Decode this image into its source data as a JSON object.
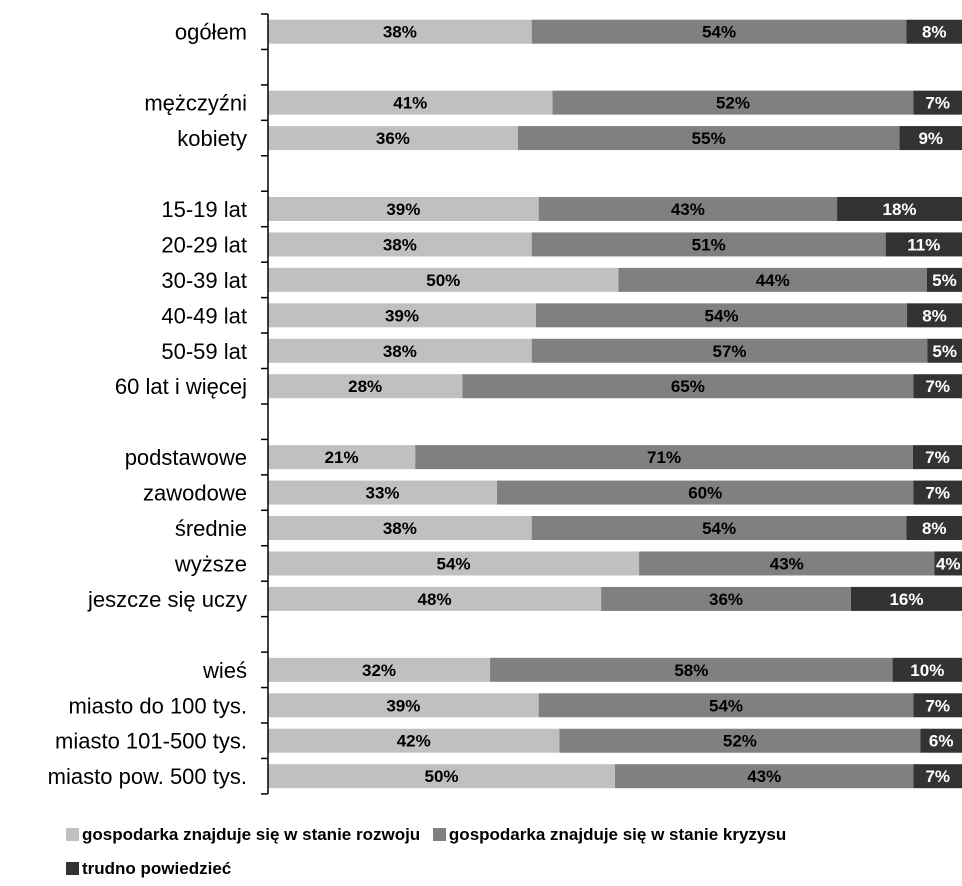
{
  "chart_data": {
    "type": "bar",
    "orientation": "horizontal",
    "stacked": "percent",
    "categories": [
      "ogółem",
      "",
      "mężczyźni",
      "kobiety",
      "",
      "15-19 lat",
      "20-29 lat",
      "30-39 lat",
      "40-49 lat",
      "50-59 lat",
      "60 lat i więcej",
      "",
      "podstawowe",
      "zawodowe",
      "średnie",
      "wyższe",
      "jeszcze się uczy",
      "",
      "wieś",
      "miasto do 100 tys.",
      "miasto 101-500 tys.",
      "miasto pow. 500 tys."
    ],
    "series": [
      {
        "name": "gospodarka znajduje się w stanie rozwoju",
        "color": "#c0c0c0",
        "values": [
          38,
          null,
          41,
          36,
          null,
          39,
          38,
          50,
          39,
          38,
          28,
          null,
          21,
          33,
          38,
          54,
          48,
          null,
          32,
          39,
          42,
          50
        ]
      },
      {
        "name": "gospodarka znajduje się w stanie kryzysu",
        "color": "#808080",
        "values": [
          54,
          null,
          52,
          55,
          null,
          43,
          51,
          44,
          54,
          57,
          65,
          null,
          71,
          60,
          54,
          43,
          36,
          null,
          58,
          54,
          52,
          43
        ]
      },
      {
        "name": "trudno powiedzieć",
        "color": "#333333",
        "values": [
          8,
          null,
          7,
          9,
          null,
          18,
          11,
          5,
          8,
          5,
          7,
          null,
          7,
          7,
          8,
          4,
          16,
          null,
          10,
          7,
          6,
          7
        ]
      }
    ],
    "value_suffix": "%",
    "legend_position": "bottom",
    "grid": false
  }
}
